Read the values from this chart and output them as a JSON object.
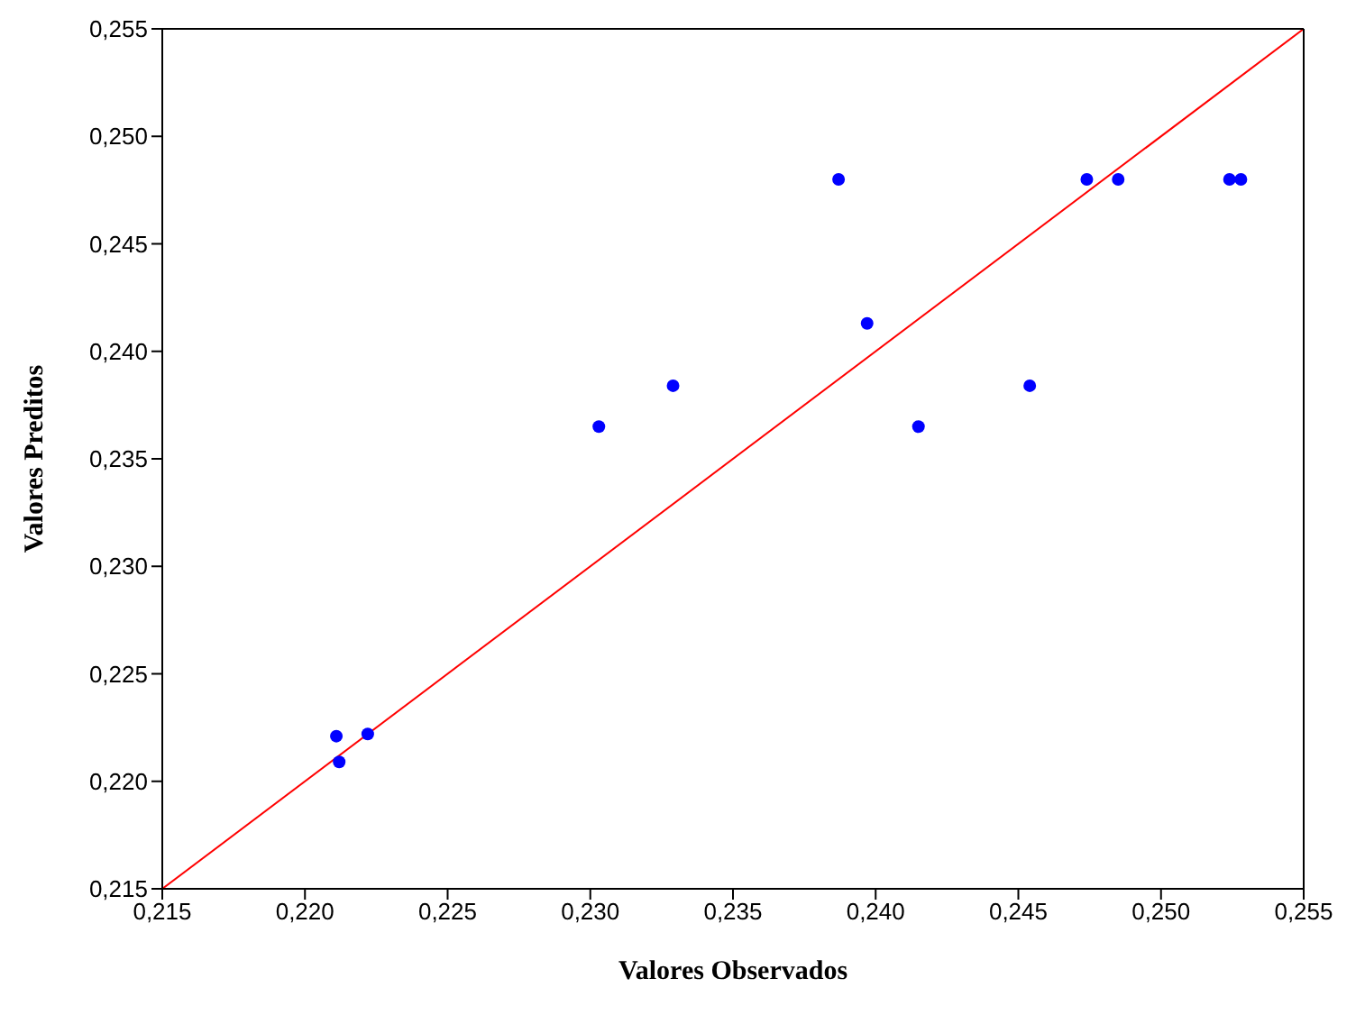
{
  "chart_data": {
    "type": "scatter",
    "xlabel": "Valores Observados",
    "ylabel": "Valores Preditos",
    "xlim": [
      0.215,
      0.255
    ],
    "ylim": [
      0.215,
      0.255
    ],
    "xticks": [
      {
        "value": 0.215,
        "label": "0,215"
      },
      {
        "value": 0.22,
        "label": "0,220"
      },
      {
        "value": 0.225,
        "label": "0,225"
      },
      {
        "value": 0.23,
        "label": "0,230"
      },
      {
        "value": 0.235,
        "label": "0,235"
      },
      {
        "value": 0.24,
        "label": "0,240"
      },
      {
        "value": 0.245,
        "label": "0,245"
      },
      {
        "value": 0.25,
        "label": "0,250"
      },
      {
        "value": 0.255,
        "label": "0,255"
      }
    ],
    "yticks": [
      {
        "value": 0.215,
        "label": "0,215"
      },
      {
        "value": 0.22,
        "label": "0,220"
      },
      {
        "value": 0.225,
        "label": "0,225"
      },
      {
        "value": 0.23,
        "label": "0,230"
      },
      {
        "value": 0.235,
        "label": "0,235"
      },
      {
        "value": 0.24,
        "label": "0,240"
      },
      {
        "value": 0.245,
        "label": "0,245"
      },
      {
        "value": 0.25,
        "label": "0,250"
      },
      {
        "value": 0.255,
        "label": "0,255"
      }
    ],
    "grid": false,
    "legend": false,
    "series": [
      {
        "type": "scatter",
        "color": "#0000ff",
        "marker": "circle",
        "x": [
          0.2211,
          0.2212,
          0.2222,
          0.2303,
          0.2329,
          0.2387,
          0.2397,
          0.2415,
          0.2454,
          0.2474,
          0.2485,
          0.2524,
          0.2528
        ],
        "values": [
          0.2221,
          0.2209,
          0.2222,
          0.2365,
          0.2384,
          0.248,
          0.2413,
          0.2365,
          0.2384,
          0.248,
          0.248,
          0.248,
          0.248
        ]
      },
      {
        "type": "line",
        "color": "#ff0000",
        "line_style": "solid",
        "x": [
          0.215,
          0.255
        ],
        "values": [
          0.215,
          0.255
        ]
      }
    ]
  }
}
